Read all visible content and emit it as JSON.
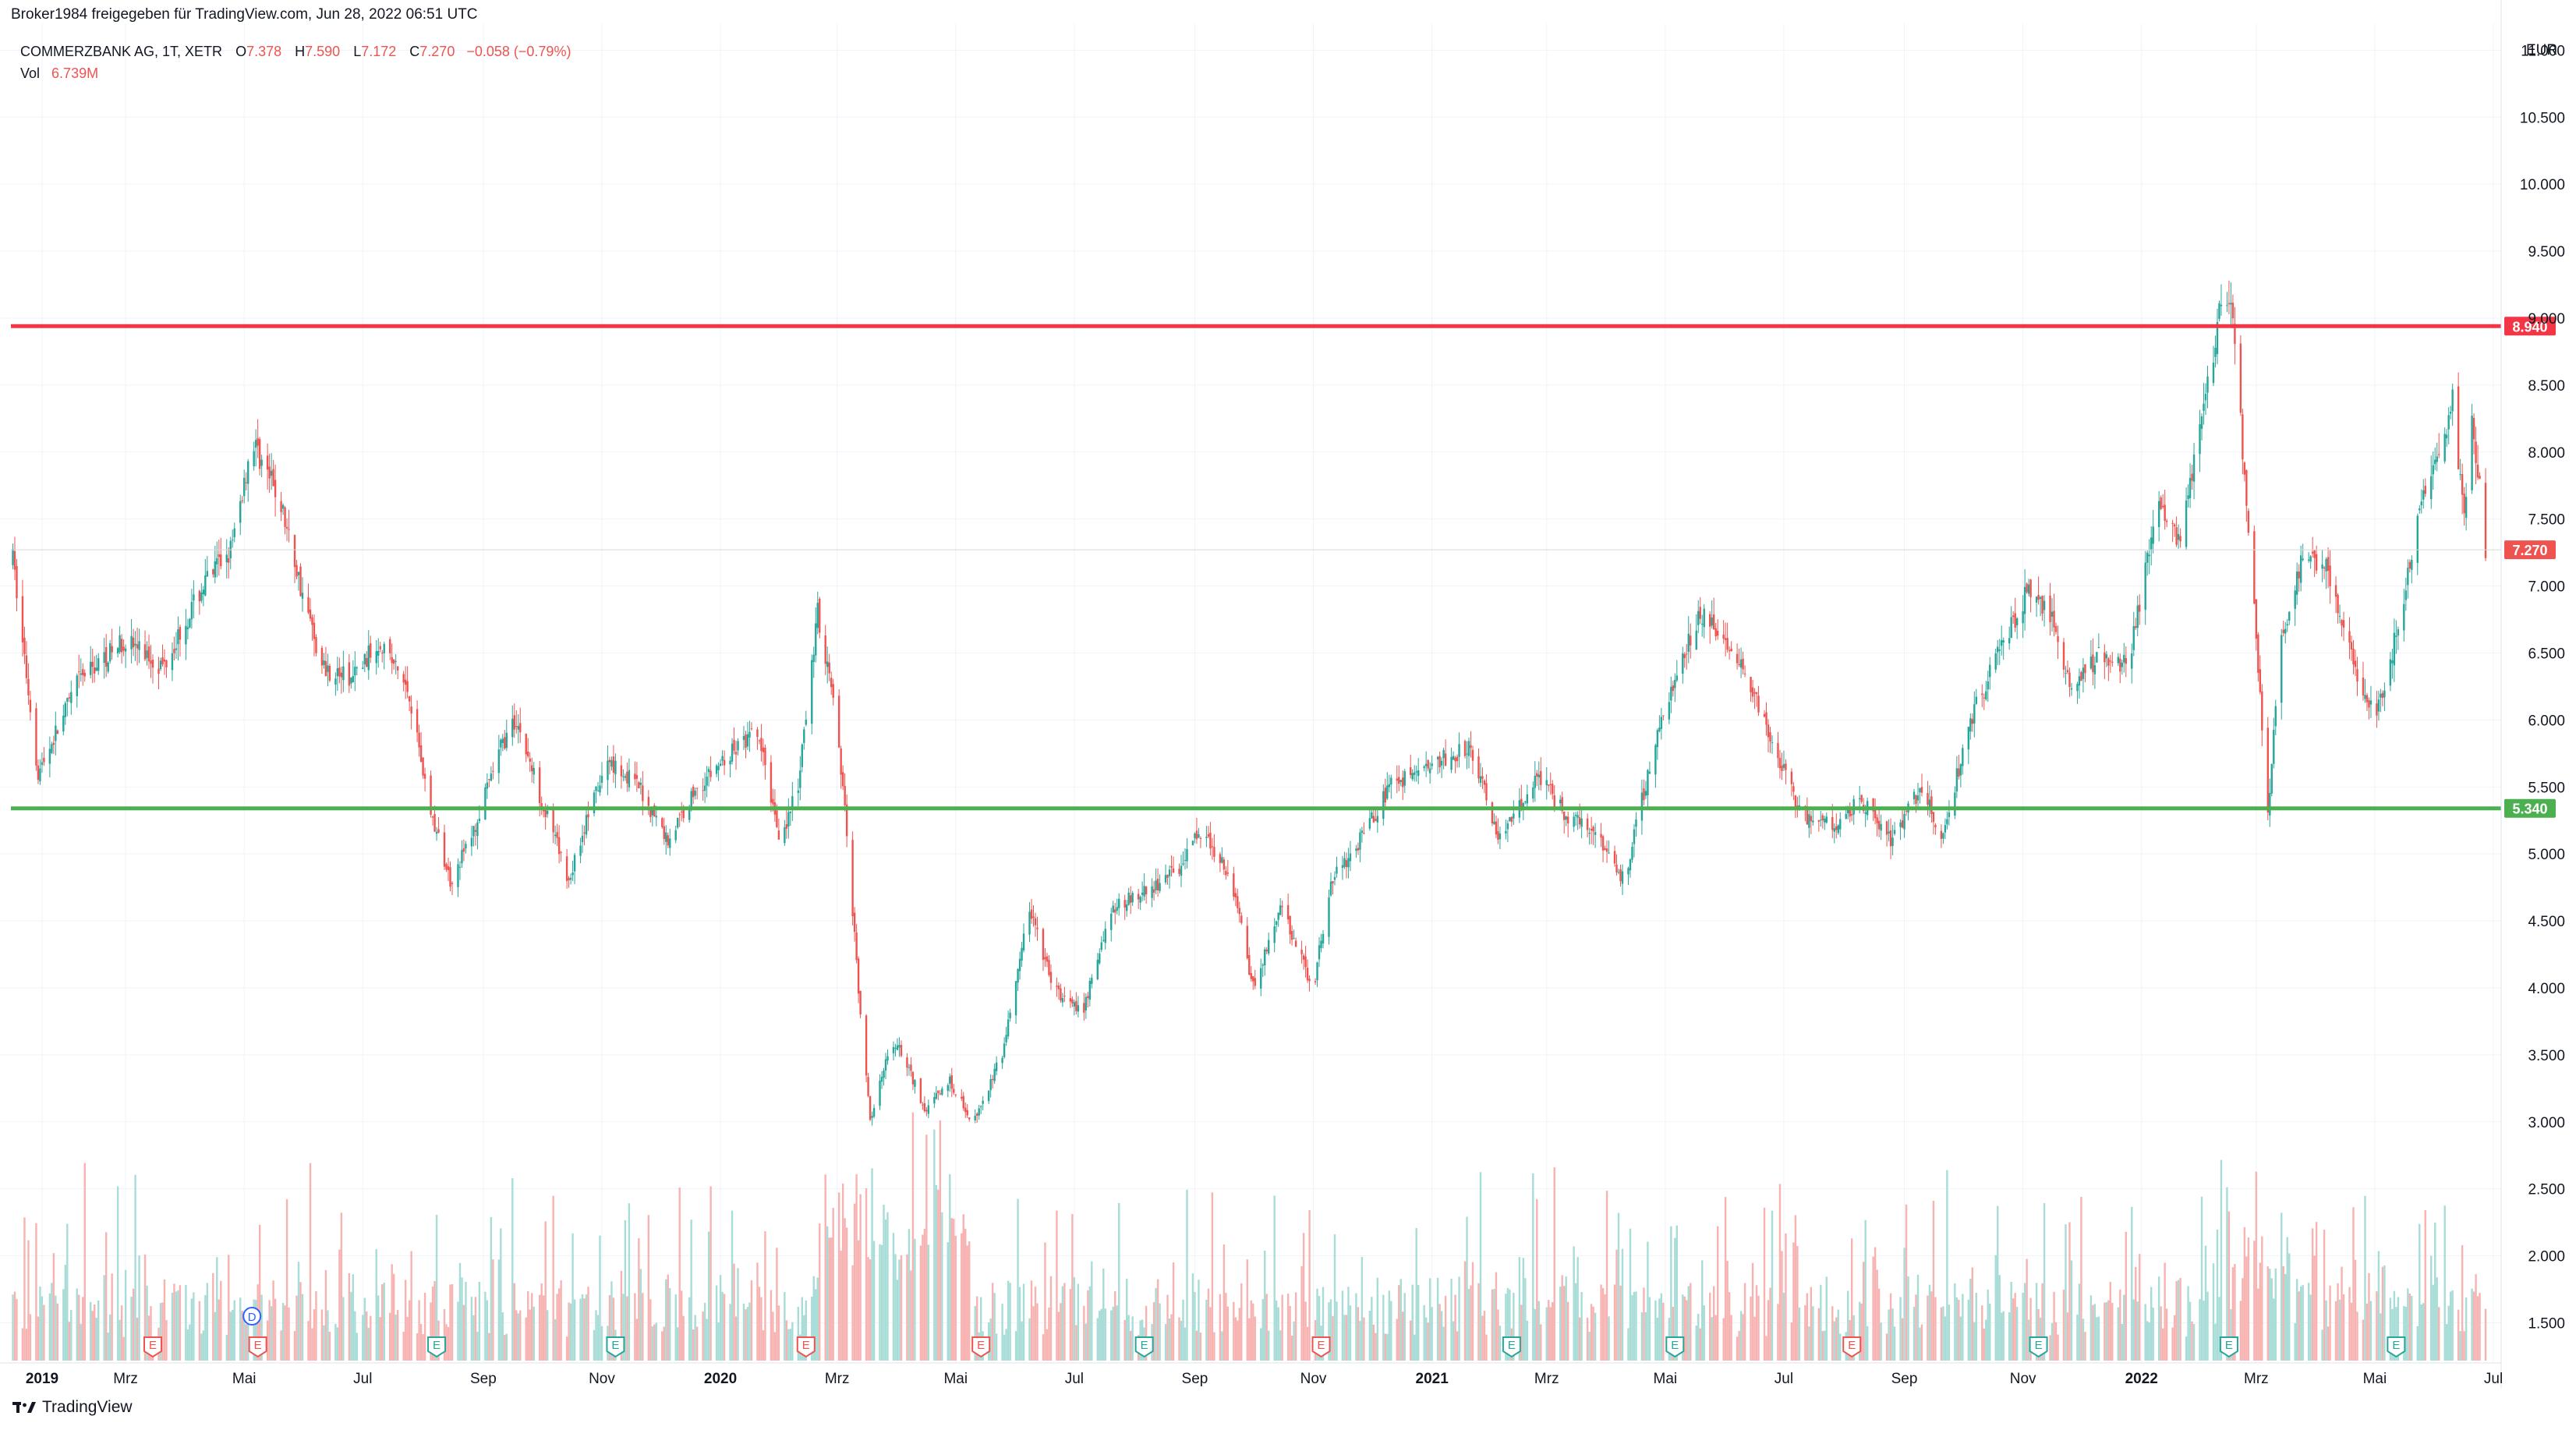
{
  "header": {
    "shared_by": "Broker1984 freigegeben für TradingView.com, Jun 28, 2022 06:51 UTC"
  },
  "legend": {
    "symbol": "COMMERZBANK AG, 1T, XETR",
    "o_label": "O",
    "o_value": "7.378",
    "h_label": "H",
    "h_value": "7.590",
    "l_label": "L",
    "l_value": "7.172",
    "c_label": "C",
    "c_value": "7.270",
    "change": "−0.058 (−0.79%)",
    "vol_label": "Vol",
    "vol_value": "6.739M"
  },
  "brand": {
    "name": "TradingView"
  },
  "colors": {
    "up": "#26a69a",
    "down": "#ef5350",
    "vol_up": "#a8dcd7",
    "vol_down": "#f7b3b1",
    "resistance": "#f23645",
    "support": "#4caf50",
    "grid": "#f0f3fa",
    "axis_text": "#131722"
  },
  "chart_data": {
    "type": "candlestick",
    "symbol": "COMMERZBANK AG",
    "interval": "1T",
    "exchange": "XETR",
    "currency": "EUR",
    "ylim": [
      1.2,
      11.2
    ],
    "y_ticks": [
      "1.500",
      "2.000",
      "2.500",
      "3.000",
      "3.500",
      "4.000",
      "4.500",
      "5.000",
      "5.500",
      "6.000",
      "6.500",
      "7.000",
      "7.500",
      "8.000",
      "8.500",
      "9.000",
      "9.500",
      "10.000",
      "10.500",
      "11.000"
    ],
    "x_ticks": [
      {
        "label": "2019",
        "bold": true
      },
      {
        "label": "Mrz"
      },
      {
        "label": "Mai"
      },
      {
        "label": "Jul"
      },
      {
        "label": "Sep"
      },
      {
        "label": "Nov"
      },
      {
        "label": "2020",
        "bold": true
      },
      {
        "label": "Mrz"
      },
      {
        "label": "Mai"
      },
      {
        "label": "Jul"
      },
      {
        "label": "Sep"
      },
      {
        "label": "Nov"
      },
      {
        "label": "2021",
        "bold": true
      },
      {
        "label": "Mrz"
      },
      {
        "label": "Mai"
      },
      {
        "label": "Jul"
      },
      {
        "label": "Sep"
      },
      {
        "label": "Nov"
      },
      {
        "label": "2022",
        "bold": true
      },
      {
        "label": "Mrz"
      },
      {
        "label": "Mai"
      },
      {
        "label": "Jul"
      }
    ],
    "price_path": [
      [
        "2019-01-02",
        7.2
      ],
      [
        "2019-01-15",
        5.6
      ],
      [
        "2019-02-05",
        6.3
      ],
      [
        "2019-03-01",
        6.6
      ],
      [
        "2019-03-20",
        6.4
      ],
      [
        "2019-04-10",
        7.0
      ],
      [
        "2019-04-25",
        7.3
      ],
      [
        "2019-05-05",
        8.1
      ],
      [
        "2019-05-20",
        7.6
      ],
      [
        "2019-05-30",
        7.0
      ],
      [
        "2019-06-10",
        6.4
      ],
      [
        "2019-06-25",
        6.3
      ],
      [
        "2019-07-10",
        6.6
      ],
      [
        "2019-07-25",
        6.2
      ],
      [
        "2019-08-05",
        5.3
      ],
      [
        "2019-08-15",
        4.8
      ],
      [
        "2019-08-28",
        5.2
      ],
      [
        "2019-09-10",
        5.8
      ],
      [
        "2019-09-18",
        6.0
      ],
      [
        "2019-10-01",
        5.4
      ],
      [
        "2019-10-15",
        4.8
      ],
      [
        "2019-10-25",
        5.3
      ],
      [
        "2019-11-05",
        5.7
      ],
      [
        "2019-11-20",
        5.5
      ],
      [
        "2019-12-05",
        5.1
      ],
      [
        "2019-12-20",
        5.5
      ],
      [
        "2020-01-10",
        5.8
      ],
      [
        "2020-01-20",
        5.9
      ],
      [
        "2020-02-01",
        5.1
      ],
      [
        "2020-02-10",
        5.5
      ],
      [
        "2020-02-20",
        6.8
      ],
      [
        "2020-02-28",
        6.2
      ],
      [
        "2020-03-05",
        5.3
      ],
      [
        "2020-03-12",
        4.0
      ],
      [
        "2020-03-18",
        3.0
      ],
      [
        "2020-03-25",
        3.4
      ],
      [
        "2020-04-01",
        3.6
      ],
      [
        "2020-04-15",
        3.1
      ],
      [
        "2020-04-28",
        3.3
      ],
      [
        "2020-05-10",
        3.0
      ],
      [
        "2020-05-25",
        3.5
      ],
      [
        "2020-06-08",
        4.6
      ],
      [
        "2020-06-20",
        4.0
      ],
      [
        "2020-07-05",
        3.8
      ],
      [
        "2020-07-20",
        4.6
      ],
      [
        "2020-08-05",
        4.7
      ],
      [
        "2020-08-25",
        4.9
      ],
      [
        "2020-09-05",
        5.2
      ],
      [
        "2020-09-20",
        4.8
      ],
      [
        "2020-10-01",
        4.0
      ],
      [
        "2020-10-15",
        4.6
      ],
      [
        "2020-11-01",
        4.0
      ],
      [
        "2020-11-10",
        4.8
      ],
      [
        "2020-11-25",
        5.1
      ],
      [
        "2020-12-10",
        5.5
      ],
      [
        "2021-01-05",
        5.7
      ],
      [
        "2021-01-20",
        5.8
      ],
      [
        "2021-02-05",
        5.1
      ],
      [
        "2021-02-25",
        5.6
      ],
      [
        "2021-03-10",
        5.3
      ],
      [
        "2021-03-25",
        5.2
      ],
      [
        "2021-04-10",
        4.8
      ],
      [
        "2021-04-25",
        5.8
      ],
      [
        "2021-05-10",
        6.5
      ],
      [
        "2021-05-20",
        6.8
      ],
      [
        "2021-06-10",
        6.4
      ],
      [
        "2021-06-25",
        5.8
      ],
      [
        "2021-07-10",
        5.3
      ],
      [
        "2021-07-25",
        5.2
      ],
      [
        "2021-08-10",
        5.4
      ],
      [
        "2021-08-25",
        5.1
      ],
      [
        "2021-09-10",
        5.5
      ],
      [
        "2021-09-20",
        5.1
      ],
      [
        "2021-10-05",
        6.0
      ],
      [
        "2021-10-20",
        6.5
      ],
      [
        "2021-11-05",
        7.0
      ],
      [
        "2021-11-15",
        6.8
      ],
      [
        "2021-11-26",
        6.2
      ],
      [
        "2021-12-10",
        6.5
      ],
      [
        "2021-12-25",
        6.4
      ],
      [
        "2022-01-10",
        7.7
      ],
      [
        "2022-01-20",
        7.3
      ],
      [
        "2022-02-01",
        8.3
      ],
      [
        "2022-02-10",
        9.0
      ],
      [
        "2022-02-16",
        9.2
      ],
      [
        "2022-02-24",
        7.6
      ],
      [
        "2022-03-01",
        6.6
      ],
      [
        "2022-03-07",
        5.3
      ],
      [
        "2022-03-14",
        6.6
      ],
      [
        "2022-03-25",
        7.2
      ],
      [
        "2022-04-05",
        7.2
      ],
      [
        "2022-04-20",
        6.4
      ],
      [
        "2022-05-01",
        6.0
      ],
      [
        "2022-05-10",
        6.5
      ],
      [
        "2022-05-25",
        7.6
      ],
      [
        "2022-06-03",
        8.0
      ],
      [
        "2022-06-10",
        8.4
      ],
      [
        "2022-06-16",
        7.5
      ],
      [
        "2022-06-20",
        8.3
      ],
      [
        "2022-06-27",
        7.27
      ]
    ],
    "levels": [
      {
        "value": 8.94,
        "label": "8.940",
        "role": "resistance"
      },
      {
        "value": 5.34,
        "label": "5.340",
        "role": "support"
      }
    ],
    "last_price": {
      "value": 7.27,
      "label": "7.270"
    },
    "volume_last": "6.739M",
    "event_markers": [
      {
        "date": "2019-03-15",
        "letter": "E",
        "dir": "down"
      },
      {
        "date": "2019-05-05",
        "letter": "D",
        "dir": "info"
      },
      {
        "date": "2019-05-08",
        "letter": "E",
        "dir": "down"
      },
      {
        "date": "2019-08-08",
        "letter": "E",
        "dir": "up"
      },
      {
        "date": "2019-11-08",
        "letter": "E",
        "dir": "up"
      },
      {
        "date": "2020-02-14",
        "letter": "E",
        "dir": "down"
      },
      {
        "date": "2020-05-14",
        "letter": "E",
        "dir": "down"
      },
      {
        "date": "2020-08-06",
        "letter": "E",
        "dir": "up"
      },
      {
        "date": "2020-11-05",
        "letter": "E",
        "dir": "down"
      },
      {
        "date": "2021-02-11",
        "letter": "E",
        "dir": "up"
      },
      {
        "date": "2021-05-06",
        "letter": "E",
        "dir": "up"
      },
      {
        "date": "2021-08-05",
        "letter": "E",
        "dir": "down"
      },
      {
        "date": "2021-11-09",
        "letter": "E",
        "dir": "up"
      },
      {
        "date": "2022-02-15",
        "letter": "E",
        "dir": "up"
      },
      {
        "date": "2022-05-12",
        "letter": "E",
        "dir": "up"
      }
    ]
  }
}
